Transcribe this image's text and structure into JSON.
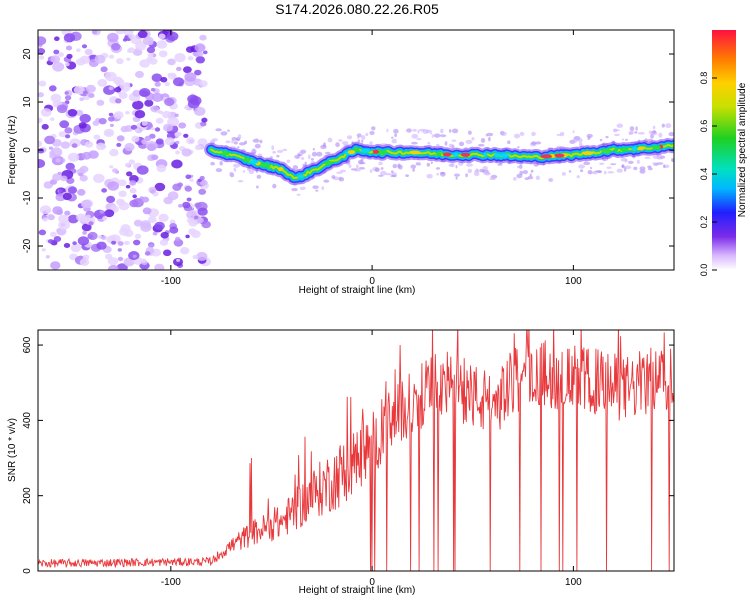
{
  "title": "S174.2026.080.22.26.R05",
  "chart_data": [
    {
      "type": "heatmap",
      "name": "spectrogram",
      "xlabel": "Height of straight line (km)",
      "ylabel": "Frequency (Hz)",
      "xlim": [
        -166,
        150
      ],
      "ylim": [
        -25,
        25
      ],
      "xticks": [
        -100,
        0,
        100
      ],
      "yticks": [
        -20,
        -10,
        0,
        10,
        20
      ],
      "noise_region_x": [
        -166,
        -82
      ],
      "ridge": [
        {
          "x": -80,
          "y": 0
        },
        {
          "x": -70,
          "y": -1
        },
        {
          "x": -55,
          "y": -3
        },
        {
          "x": -45,
          "y": -4
        },
        {
          "x": -38,
          "y": -6
        },
        {
          "x": -28,
          "y": -4
        },
        {
          "x": -18,
          "y": -2
        },
        {
          "x": -8,
          "y": 0
        },
        {
          "x": 5,
          "y": -0.5
        },
        {
          "x": 20,
          "y": -0.5
        },
        {
          "x": 40,
          "y": -1
        },
        {
          "x": 60,
          "y": -1
        },
        {
          "x": 80,
          "y": -1.5
        },
        {
          "x": 100,
          "y": -1
        },
        {
          "x": 120,
          "y": 0
        },
        {
          "x": 140,
          "y": 0.5
        },
        {
          "x": 150,
          "y": 1
        }
      ],
      "colorbar": {
        "label": "Normalized spectral amplitude",
        "range": [
          0,
          1
        ],
        "ticks": [
          "0.0",
          "0.2",
          "0.4",
          "0.6",
          "0.8"
        ]
      }
    },
    {
      "type": "line",
      "name": "snr",
      "xlabel": "Height of straight line (km)",
      "ylabel": "SNR (10 * v/v)",
      "xlim": [
        -166,
        150
      ],
      "ylim": [
        0,
        640
      ],
      "xticks": [
        -100,
        0,
        100
      ],
      "yticks": [
        0,
        200,
        400,
        600
      ],
      "color": "#e8383b",
      "trend": [
        {
          "x": -166,
          "y": 20
        },
        {
          "x": -80,
          "y": 25
        },
        {
          "x": -72,
          "y": 60
        },
        {
          "x": -60,
          "y": 100
        },
        {
          "x": -45,
          "y": 130
        },
        {
          "x": -30,
          "y": 200
        },
        {
          "x": -15,
          "y": 260
        },
        {
          "x": -5,
          "y": 310
        },
        {
          "x": 5,
          "y": 370
        },
        {
          "x": 15,
          "y": 420
        },
        {
          "x": 25,
          "y": 470
        },
        {
          "x": 35,
          "y": 500
        },
        {
          "x": 45,
          "y": 480
        },
        {
          "x": 55,
          "y": 450
        },
        {
          "x": 60,
          "y": 440
        },
        {
          "x": 70,
          "y": 500
        },
        {
          "x": 80,
          "y": 530
        },
        {
          "x": 90,
          "y": 520
        },
        {
          "x": 100,
          "y": 510
        },
        {
          "x": 115,
          "y": 500
        },
        {
          "x": 125,
          "y": 480
        },
        {
          "x": 135,
          "y": 500
        },
        {
          "x": 150,
          "y": 520
        }
      ]
    }
  ]
}
